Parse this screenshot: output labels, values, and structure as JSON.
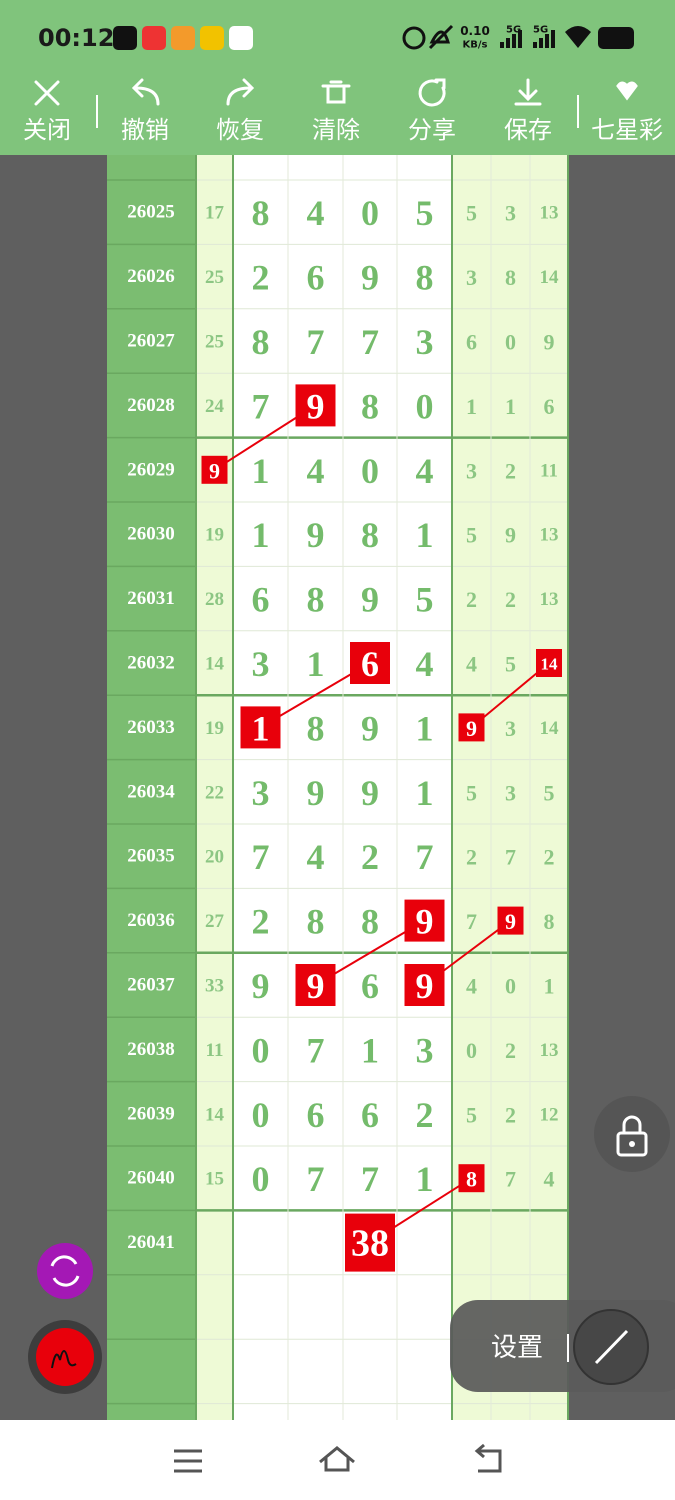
{
  "status_bar": {
    "time": "00:12",
    "net_speed": "0.10",
    "net_unit": "KB/s",
    "signal_1": "5G",
    "signal_2": "5G"
  },
  "toolbar": [
    "关闭",
    "撤销",
    "恢复",
    "清除",
    "分享",
    "保存",
    "七星彩"
  ],
  "table": {
    "rows": [
      {
        "period": "26025",
        "cells": [
          "17",
          "8",
          "4",
          "0",
          "5",
          "5",
          "3",
          "13"
        ],
        "highlight": []
      },
      {
        "period": "26026",
        "cells": [
          "25",
          "2",
          "6",
          "9",
          "8",
          "3",
          "8",
          "14"
        ],
        "highlight": []
      },
      {
        "period": "26027",
        "cells": [
          "25",
          "8",
          "7",
          "7",
          "3",
          "6",
          "0",
          "9"
        ],
        "highlight": []
      },
      {
        "period": "26028",
        "cells": [
          "24",
          "7",
          "9",
          "8",
          "0",
          "1",
          "1",
          "6"
        ],
        "highlight": [
          2
        ]
      },
      {
        "period": "26029",
        "cells": [
          "9",
          "1",
          "4",
          "0",
          "4",
          "3",
          "2",
          "11"
        ],
        "highlight": [
          0
        ]
      },
      {
        "period": "26030",
        "cells": [
          "19",
          "1",
          "9",
          "8",
          "1",
          "5",
          "9",
          "13"
        ],
        "highlight": []
      },
      {
        "period": "26031",
        "cells": [
          "28",
          "6",
          "8",
          "9",
          "5",
          "2",
          "2",
          "13"
        ],
        "highlight": []
      },
      {
        "period": "26032",
        "cells": [
          "14",
          "3",
          "1",
          "6",
          "4",
          "4",
          "5",
          "14"
        ],
        "highlight": [
          3,
          7
        ]
      },
      {
        "period": "26033",
        "cells": [
          "19",
          "1",
          "8",
          "9",
          "1",
          "9",
          "3",
          "14"
        ],
        "highlight": [
          1,
          5
        ]
      },
      {
        "period": "26034",
        "cells": [
          "22",
          "3",
          "9",
          "9",
          "1",
          "5",
          "3",
          "5"
        ],
        "highlight": []
      },
      {
        "period": "26035",
        "cells": [
          "20",
          "7",
          "4",
          "2",
          "7",
          "2",
          "7",
          "2"
        ],
        "highlight": []
      },
      {
        "period": "26036",
        "cells": [
          "27",
          "2",
          "8",
          "8",
          "9",
          "7",
          "9",
          "8"
        ],
        "highlight": [
          4,
          6
        ]
      },
      {
        "period": "26037",
        "cells": [
          "33",
          "9",
          "9",
          "6",
          "9",
          "4",
          "0",
          "1"
        ],
        "highlight": [
          2,
          4
        ]
      },
      {
        "period": "26038",
        "cells": [
          "11",
          "0",
          "7",
          "1",
          "3",
          "0",
          "2",
          "13"
        ],
        "highlight": []
      },
      {
        "period": "26039",
        "cells": [
          "14",
          "0",
          "6",
          "6",
          "2",
          "5",
          "2",
          "12"
        ],
        "highlight": []
      },
      {
        "period": "26040",
        "cells": [
          "15",
          "0",
          "7",
          "7",
          "1",
          "8",
          "7",
          "4"
        ],
        "highlight": [
          5
        ]
      },
      {
        "period": "26041",
        "result": "38"
      }
    ]
  },
  "panel": {
    "settings": "设置"
  }
}
